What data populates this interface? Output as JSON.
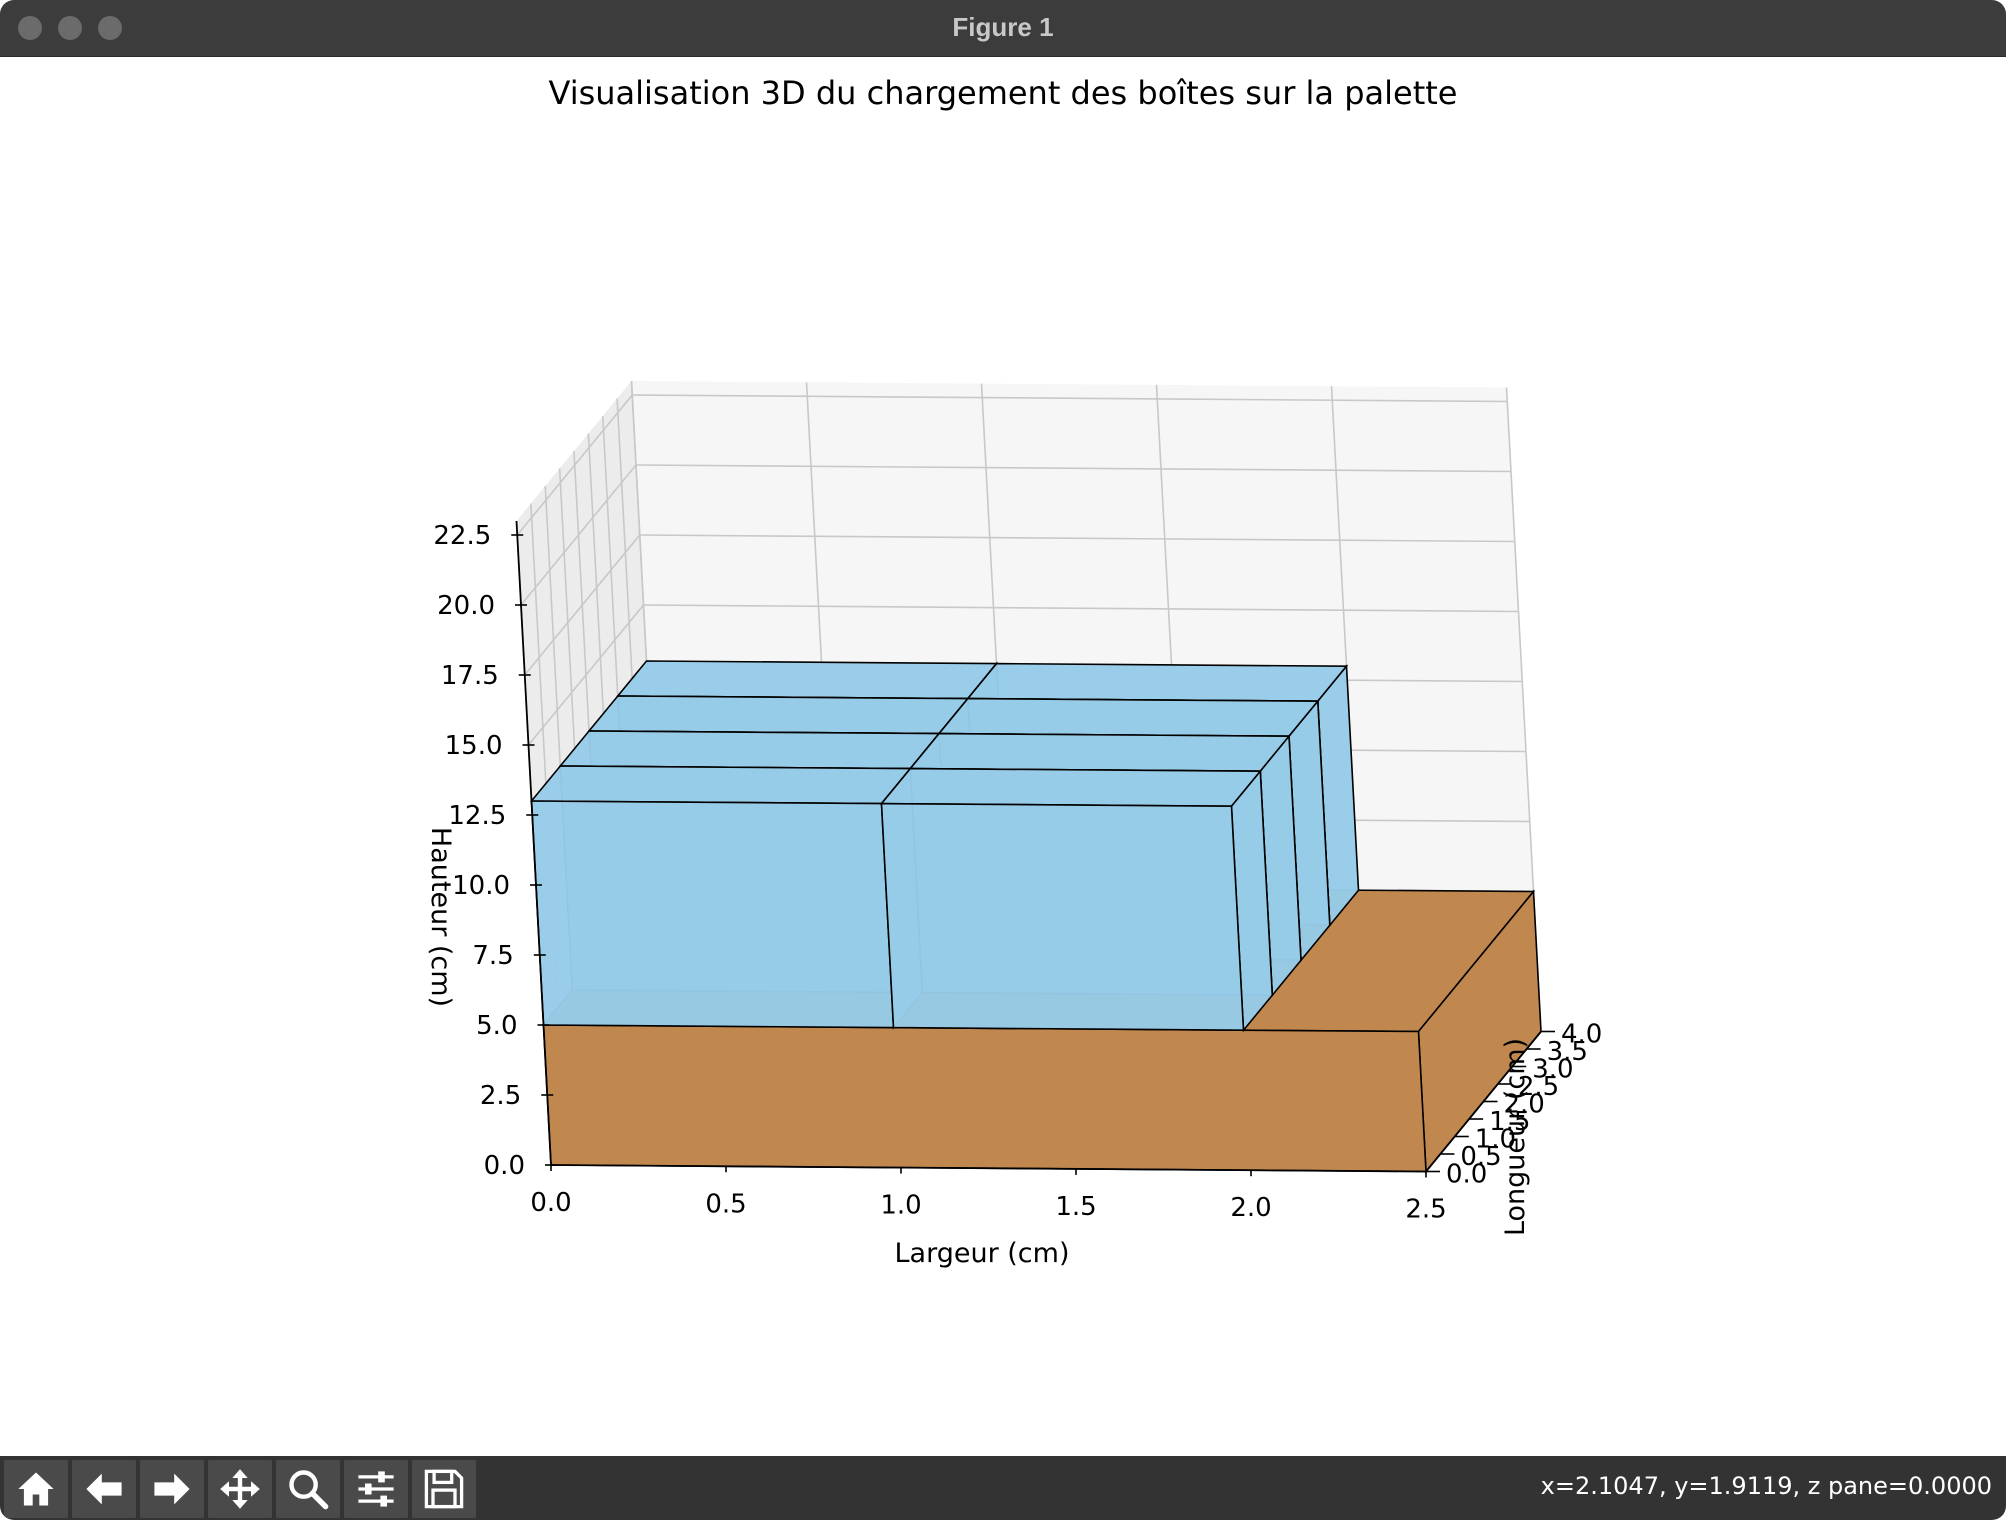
{
  "window": {
    "title": "Figure 1"
  },
  "chart_data": {
    "type": "3d-bar",
    "title": "Visualisation 3D du chargement des boîtes sur la palette",
    "xlabel": "Largeur (cm)",
    "ylabel": "Longueur (cm)",
    "zlabel": "Hauteur (cm)",
    "x_ticks": [
      "0.0",
      "0.5",
      "1.0",
      "1.5",
      "2.0",
      "2.5"
    ],
    "y_ticks": [
      "0.0",
      "0.5",
      "1.0",
      "1.5",
      "2.0",
      "2.5",
      "3.0",
      "3.5",
      "4.0"
    ],
    "z_ticks": [
      "0.0",
      "2.5",
      "5.0",
      "7.5",
      "10.0",
      "12.5",
      "15.0",
      "17.5",
      "20.0",
      "22.5"
    ],
    "xlim": [
      0,
      2.5
    ],
    "ylim": [
      0,
      4
    ],
    "zlim": [
      0,
      23
    ],
    "grid": true,
    "palette": {
      "x": [
        0,
        2.5
      ],
      "y": [
        0,
        4
      ],
      "z": [
        0,
        5
      ],
      "color": "#c0874e"
    },
    "boxes": {
      "rows": 4,
      "cols": 2,
      "width": 1.0,
      "depth": 1.0,
      "height": 8,
      "z_base": 5,
      "color": "#97cbe8"
    }
  },
  "toolbar": {
    "buttons": [
      "home-icon",
      "back-arrow-icon",
      "forward-arrow-icon",
      "pan-icon",
      "zoom-icon",
      "configure-subplots-icon",
      "save-icon"
    ]
  },
  "status": {
    "text": "x=2.1047, y=1.9119, z pane=0.0000"
  }
}
